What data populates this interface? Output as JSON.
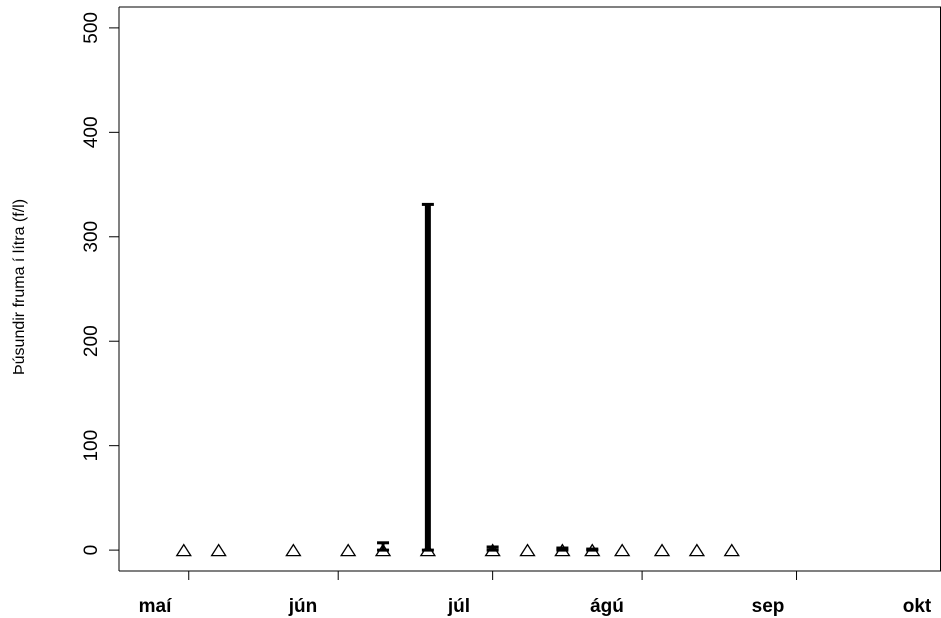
{
  "chart_data": {
    "type": "scatter",
    "title": "",
    "xlabel": "",
    "ylabel": "Þúsundir fruma í lítra (f/l)",
    "xlim": [
      "2019-05-05",
      "2019-10-17"
    ],
    "ylim": [
      -20,
      520
    ],
    "y_ticks": [
      0,
      100,
      200,
      300,
      400,
      500
    ],
    "x_ticks": [
      {
        "date": "2019-05-19",
        "label": "maí"
      },
      {
        "date": "2019-06-18",
        "label": "jún"
      },
      {
        "date": "2019-07-19",
        "label": "júl"
      },
      {
        "date": "2019-08-18",
        "label": "ágú"
      },
      {
        "date": "2019-09-18",
        "label": "sep"
      },
      {
        "date": "2019-10-18",
        "label": "okt"
      }
    ],
    "grid": false,
    "colors": {
      "marker": "#000000",
      "axis": "#000000",
      "background": "#ffffff"
    },
    "series": [
      {
        "marker": "open-triangle",
        "points": [
          {
            "x": "2019-05-18",
            "y": 0
          },
          {
            "x": "2019-05-25",
            "y": 0
          },
          {
            "x": "2019-06-09",
            "y": 0
          },
          {
            "x": "2019-06-20",
            "y": 0
          },
          {
            "x": "2019-06-27",
            "y": 0,
            "err_low": 0,
            "err_high": 7
          },
          {
            "x": "2019-07-06",
            "y": 0,
            "err_low": 0,
            "err_high": 331
          },
          {
            "x": "2019-07-19",
            "y": 0,
            "err_low": 0,
            "err_high": 3
          },
          {
            "x": "2019-07-26",
            "y": 0
          },
          {
            "x": "2019-08-02",
            "y": 0,
            "err_low": 0,
            "err_high": 2
          },
          {
            "x": "2019-08-08",
            "y": 0,
            "err_low": 0,
            "err_high": 1
          },
          {
            "x": "2019-08-14",
            "y": 0
          },
          {
            "x": "2019-08-22",
            "y": 0
          },
          {
            "x": "2019-08-29",
            "y": 0
          },
          {
            "x": "2019-09-05",
            "y": 0
          }
        ]
      }
    ]
  }
}
